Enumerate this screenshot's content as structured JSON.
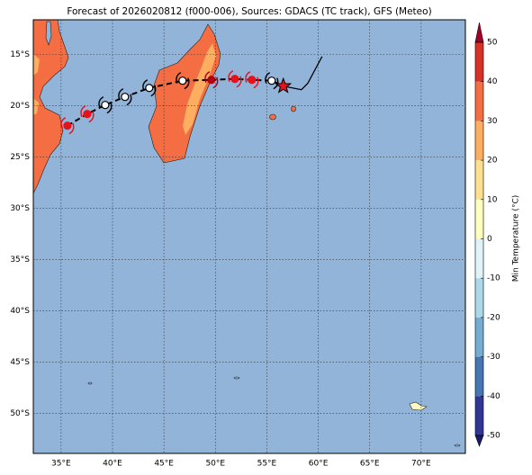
{
  "title": "Forecast of 2026020812 (f000-006), Sources: GDACS (TC track), GFS (Meteo)",
  "map": {
    "lon_range": [
      32.3,
      74.3
    ],
    "lat_range": [
      -53.9,
      -11.6
    ],
    "lon_ticks": [
      {
        "value": 35,
        "label": "35°E"
      },
      {
        "value": 40,
        "label": "40°E"
      },
      {
        "value": 45,
        "label": "45°E"
      },
      {
        "value": 50,
        "label": "50°E"
      },
      {
        "value": 55,
        "label": "55°E"
      },
      {
        "value": 60,
        "label": "60°E"
      },
      {
        "value": 65,
        "label": "65°E"
      },
      {
        "value": 70,
        "label": "70°E"
      }
    ],
    "lat_ticks": [
      {
        "value": -15,
        "label": "15°S"
      },
      {
        "value": -20,
        "label": "20°S"
      },
      {
        "value": -25,
        "label": "25°S"
      },
      {
        "value": -30,
        "label": "30°S"
      },
      {
        "value": -35,
        "label": "35°S"
      },
      {
        "value": -40,
        "label": "40°S"
      },
      {
        "value": -45,
        "label": "45°S"
      },
      {
        "value": -50,
        "label": "50°S"
      }
    ]
  },
  "track": {
    "forecast": [
      {
        "lon": 35.61,
        "lat": -21.93,
        "color": "#e8101a"
      },
      {
        "lon": 37.54,
        "lat": -20.79,
        "color": "#e8101a"
      },
      {
        "lon": 39.29,
        "lat": -19.91,
        "color": "#ffffff"
      },
      {
        "lon": 41.21,
        "lat": -19.12,
        "color": "#ffffff"
      },
      {
        "lon": 43.57,
        "lat": -18.25,
        "color": "#ffffff"
      },
      {
        "lon": 46.81,
        "lat": -17.54,
        "color": "#ffffff"
      },
      {
        "lon": 49.61,
        "lat": -17.46,
        "color": "#b0000f"
      },
      {
        "lon": 51.89,
        "lat": -17.37,
        "color": "#e8101a"
      },
      {
        "lon": 53.55,
        "lat": -17.46,
        "color": "#e8101a"
      },
      {
        "lon": 55.47,
        "lat": -17.54,
        "color": "#ffffff"
      }
    ],
    "current": {
      "lon": 56.6,
      "lat": -18.07,
      "color": "#e8101a"
    },
    "past": {
      "lon": [
        56.6,
        58.36,
        58.97,
        60.37
      ],
      "lat": [
        -18.07,
        -18.42,
        -17.81,
        -15.18
      ]
    }
  },
  "colorbar": {
    "label": "Min Temperature (°C)",
    "lim": [
      -50,
      50
    ],
    "ticks": [
      -50,
      -40,
      -30,
      -20,
      -10,
      0,
      10,
      20,
      30,
      40,
      50
    ],
    "colors": [
      "#313695",
      "#4575b4",
      "#74add1",
      "#abd9e9",
      "#e0f3f8",
      "#ffffbf",
      "#fee090",
      "#fdae61",
      "#f46d43",
      "#d73027"
    ],
    "extend_colors": [
      "#1a1a6e",
      "#a50026"
    ]
  }
}
